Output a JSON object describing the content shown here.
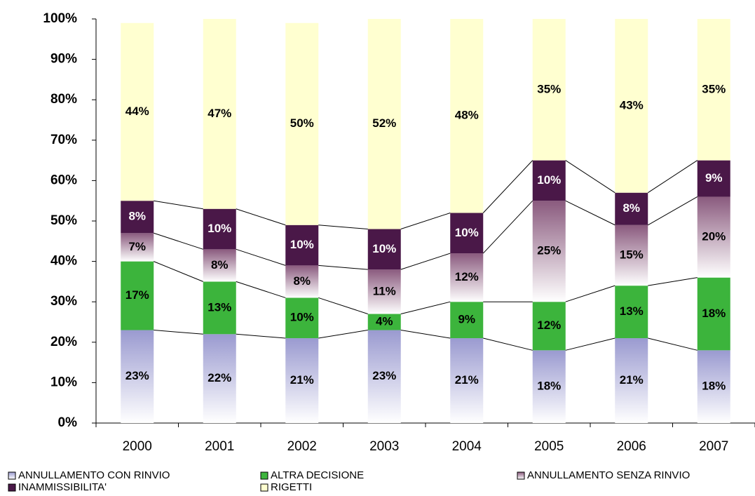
{
  "chart_data": {
    "type": "stacked_bar",
    "categories": [
      "2000",
      "2001",
      "2002",
      "2003",
      "2004",
      "2005",
      "2006",
      "2007"
    ],
    "series": [
      {
        "name": "ANNULLAMENTO CON RINVIO",
        "color": "#9a9ad0",
        "gradient": true,
        "label_color": "#000000",
        "values": [
          23,
          22,
          21,
          23,
          21,
          18,
          21,
          18
        ],
        "value_labels": [
          "23%",
          "22%",
          "21%",
          "23%",
          "21%",
          "18%",
          "21%",
          "18%"
        ]
      },
      {
        "name": "ALTRA DECISIONE",
        "color": "#3cb43c",
        "gradient": false,
        "label_color": "#000000",
        "values": [
          17,
          13,
          10,
          4,
          9,
          12,
          13,
          18
        ],
        "value_labels": [
          "17%",
          "13%",
          "10%",
          "4%",
          "9%",
          "12%",
          "13%",
          "18%"
        ]
      },
      {
        "name": "ANNULLAMENTO SENZA RINVIO",
        "color": "#8a5a7e",
        "gradient": true,
        "label_color": "#000000",
        "values": [
          7,
          8,
          8,
          11,
          12,
          25,
          15,
          20
        ],
        "value_labels": [
          "7%",
          "8%",
          "8%",
          "11%",
          "12%",
          "25%",
          "15%",
          "20%"
        ]
      },
      {
        "name": "INAMMISSIBILITA'",
        "color": "#4a1848",
        "gradient": false,
        "label_color": "#ffffff",
        "values": [
          8,
          10,
          10,
          10,
          10,
          10,
          8,
          9
        ],
        "value_labels": [
          "8%",
          "10%",
          "10%",
          "10%",
          "10%",
          "10%",
          "8%",
          "9%"
        ]
      },
      {
        "name": "RIGETTI",
        "color": "#ffffd0",
        "gradient": false,
        "label_color": "#000000",
        "values": [
          44,
          47,
          50,
          52,
          48,
          35,
          43,
          35
        ],
        "value_labels": [
          "44%",
          "47%",
          "50%",
          "52%",
          "48%",
          "35%",
          "43%",
          "35%"
        ]
      }
    ],
    "ylim": [
      0,
      100
    ],
    "yticks": [
      {
        "value": 0,
        "label": "0%"
      },
      {
        "value": 10,
        "label": "10%"
      },
      {
        "value": 20,
        "label": "20%"
      },
      {
        "value": 30,
        "label": "30%"
      },
      {
        "value": 40,
        "label": "40%"
      },
      {
        "value": 50,
        "label": "50%"
      },
      {
        "value": 60,
        "label": "60%"
      },
      {
        "value": 70,
        "label": "70%"
      },
      {
        "value": 80,
        "label": "80%"
      },
      {
        "value": 90,
        "label": "90%"
      },
      {
        "value": 100,
        "label": "100%"
      }
    ],
    "series_lines": true,
    "legend": "bottom"
  }
}
